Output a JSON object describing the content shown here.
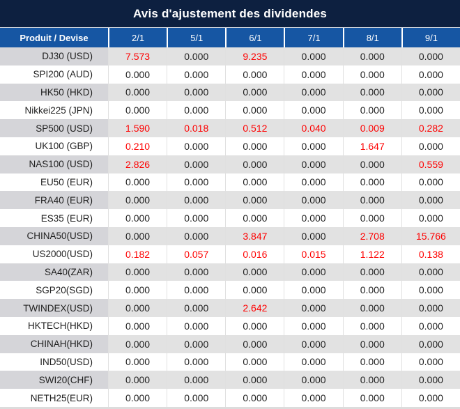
{
  "title": "Avis d'ajustement des dividendes",
  "colors": {
    "title_bg": "#0d2040",
    "header_bg": "#1656a3",
    "header_text": "#ffffff",
    "stripe_value_bg": "#e2e2e2",
    "stripe_product_bg": "#d5d5d9",
    "row_white_bg": "#ffffff",
    "separator": "#e0e0e0",
    "value_text": "#1f1f1f",
    "nonzero_value_text": "#fe0000"
  },
  "chart_data": {
    "type": "table",
    "title": "Avis d'ajustement des dividendes",
    "columns": [
      "Produit / Devise",
      "2/1",
      "5/1",
      "6/1",
      "7/1",
      "8/1",
      "9/1"
    ],
    "rows": [
      {
        "product": "DJ30 (USD)",
        "values": [
          "7.573",
          "0.000",
          "9.235",
          "0.000",
          "0.000",
          "0.000"
        ],
        "highlight": [
          1,
          0,
          1,
          0,
          0,
          0
        ]
      },
      {
        "product": "SPI200 (AUD)",
        "values": [
          "0.000",
          "0.000",
          "0.000",
          "0.000",
          "0.000",
          "0.000"
        ],
        "highlight": [
          0,
          0,
          0,
          0,
          0,
          0
        ]
      },
      {
        "product": "HK50 (HKD)",
        "values": [
          "0.000",
          "0.000",
          "0.000",
          "0.000",
          "0.000",
          "0.000"
        ],
        "highlight": [
          0,
          0,
          0,
          0,
          0,
          0
        ]
      },
      {
        "product": "Nikkei225 (JPN)",
        "values": [
          "0.000",
          "0.000",
          "0.000",
          "0.000",
          "0.000",
          "0.000"
        ],
        "highlight": [
          0,
          0,
          0,
          0,
          0,
          0
        ]
      },
      {
        "product": "SP500 (USD)",
        "values": [
          "1.590",
          "0.018",
          "0.512",
          "0.040",
          "0.009",
          "0.282"
        ],
        "highlight": [
          1,
          1,
          1,
          1,
          1,
          1
        ]
      },
      {
        "product": "UK100 (GBP)",
        "values": [
          "0.210",
          "0.000",
          "0.000",
          "0.000",
          "1.647",
          "0.000"
        ],
        "highlight": [
          1,
          0,
          0,
          0,
          1,
          0
        ]
      },
      {
        "product": "NAS100 (USD)",
        "values": [
          "2.826",
          "0.000",
          "0.000",
          "0.000",
          "0.000",
          "0.559"
        ],
        "highlight": [
          1,
          0,
          0,
          0,
          0,
          1
        ]
      },
      {
        "product": "EU50 (EUR)",
        "values": [
          "0.000",
          "0.000",
          "0.000",
          "0.000",
          "0.000",
          "0.000"
        ],
        "highlight": [
          0,
          0,
          0,
          0,
          0,
          0
        ]
      },
      {
        "product": "FRA40 (EUR)",
        "values": [
          "0.000",
          "0.000",
          "0.000",
          "0.000",
          "0.000",
          "0.000"
        ],
        "highlight": [
          0,
          0,
          0,
          0,
          0,
          0
        ]
      },
      {
        "product": "ES35 (EUR)",
        "values": [
          "0.000",
          "0.000",
          "0.000",
          "0.000",
          "0.000",
          "0.000"
        ],
        "highlight": [
          0,
          0,
          0,
          0,
          0,
          0
        ]
      },
      {
        "product": "CHINA50(USD)",
        "values": [
          "0.000",
          "0.000",
          "3.847",
          "0.000",
          "2.708",
          "15.766"
        ],
        "highlight": [
          0,
          0,
          1,
          0,
          1,
          1
        ]
      },
      {
        "product": "US2000(USD)",
        "values": [
          "0.182",
          "0.057",
          "0.016",
          "0.015",
          "1.122",
          "0.138"
        ],
        "highlight": [
          1,
          1,
          1,
          1,
          1,
          1
        ]
      },
      {
        "product": "SA40(ZAR)",
        "values": [
          "0.000",
          "0.000",
          "0.000",
          "0.000",
          "0.000",
          "0.000"
        ],
        "highlight": [
          0,
          0,
          0,
          0,
          0,
          0
        ]
      },
      {
        "product": "SGP20(SGD)",
        "values": [
          "0.000",
          "0.000",
          "0.000",
          "0.000",
          "0.000",
          "0.000"
        ],
        "highlight": [
          0,
          0,
          0,
          0,
          0,
          0
        ]
      },
      {
        "product": "TWINDEX(USD)",
        "values": [
          "0.000",
          "0.000",
          "2.642",
          "0.000",
          "0.000",
          "0.000"
        ],
        "highlight": [
          0,
          0,
          1,
          0,
          0,
          0
        ]
      },
      {
        "product": "HKTECH(HKD)",
        "values": [
          "0.000",
          "0.000",
          "0.000",
          "0.000",
          "0.000",
          "0.000"
        ],
        "highlight": [
          0,
          0,
          0,
          0,
          0,
          0
        ]
      },
      {
        "product": "CHINAH(HKD)",
        "values": [
          "0.000",
          "0.000",
          "0.000",
          "0.000",
          "0.000",
          "0.000"
        ],
        "highlight": [
          0,
          0,
          0,
          0,
          0,
          0
        ]
      },
      {
        "product": "IND50(USD)",
        "values": [
          "0.000",
          "0.000",
          "0.000",
          "0.000",
          "0.000",
          "0.000"
        ],
        "highlight": [
          0,
          0,
          0,
          0,
          0,
          0
        ]
      },
      {
        "product": "SWI20(CHF)",
        "values": [
          "0.000",
          "0.000",
          "0.000",
          "0.000",
          "0.000",
          "0.000"
        ],
        "highlight": [
          0,
          0,
          0,
          0,
          0,
          0
        ]
      },
      {
        "product": "NETH25(EUR)",
        "values": [
          "0.000",
          "0.000",
          "0.000",
          "0.000",
          "0.000",
          "0.000"
        ],
        "highlight": [
          0,
          0,
          0,
          0,
          0,
          0
        ]
      }
    ]
  }
}
